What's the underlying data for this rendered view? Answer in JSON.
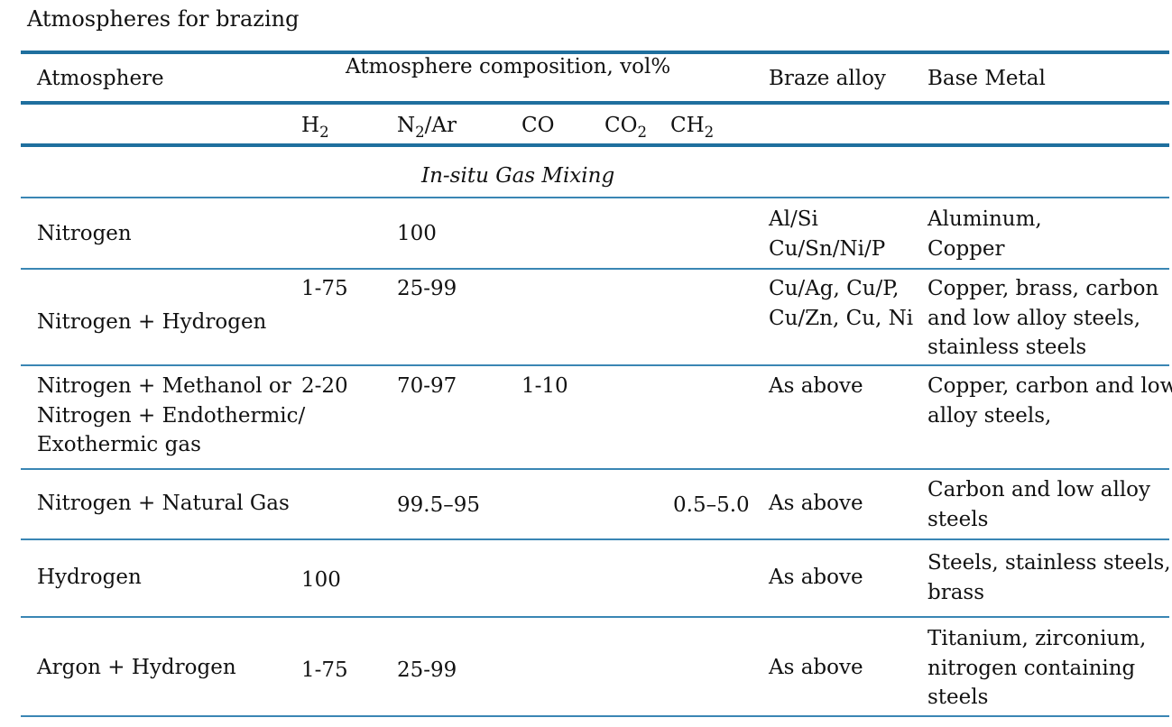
{
  "title": "Atmospheres for brazing",
  "colors": {
    "rule": "#1f6f9e"
  },
  "headers": {
    "atmosphere": "Atmosphere",
    "composition": "Atmosphere composition, vol%",
    "braze_alloy": "Braze alloy",
    "base_metal": "Base Metal"
  },
  "subheaders": {
    "h2": {
      "base": "H",
      "sub": "2"
    },
    "n2ar": {
      "base": "N",
      "sub": "2",
      "rest": "/Ar"
    },
    "co": "CO",
    "co2": {
      "base": "CO",
      "sub": "2"
    },
    "ch2": {
      "base": "CH",
      "sub": "2"
    }
  },
  "section": "In-situ Gas Mixing",
  "rows": [
    {
      "atmosphere": [
        "Nitrogen"
      ],
      "h2": "",
      "n2ar": "100",
      "co": "",
      "co2": "",
      "ch2": "",
      "braze": [
        "Al/Si",
        "Cu/Sn/Ni/P"
      ],
      "base": [
        "Aluminum,",
        "Copper"
      ]
    },
    {
      "atmosphere": [
        "Nitrogen + Hydrogen"
      ],
      "h2": "1-75",
      "n2ar": "25-99",
      "co": "",
      "co2": "",
      "ch2": "",
      "braze": [
        "Cu/Ag, Cu/P,",
        "Cu/Zn, Cu, Ni"
      ],
      "base": [
        "Copper, brass, carbon",
        "and low alloy steels,",
        "stainless steels"
      ]
    },
    {
      "atmosphere": [
        "Nitrogen + Methanol or",
        "Nitrogen + Endothermic/",
        "Exothermic gas"
      ],
      "h2": "2-20",
      "n2ar": "70-97",
      "co": "1-10",
      "co2": "",
      "ch2": "",
      "braze": [
        "As above"
      ],
      "base": [
        "Copper, carbon and low",
        "alloy steels,"
      ]
    },
    {
      "atmosphere": [
        "Nitrogen + Natural Gas"
      ],
      "h2": "",
      "n2ar": "99.5–95",
      "co": "",
      "co2": "",
      "ch2": "0.5–5.0",
      "braze": [
        "As above"
      ],
      "base": [
        "Carbon and low alloy",
        "steels"
      ]
    },
    {
      "atmosphere": [
        "Hydrogen"
      ],
      "h2": "100",
      "n2ar": "",
      "co": "",
      "co2": "",
      "ch2": "",
      "braze": [
        "As above"
      ],
      "base": [
        "Steels, stainless steels,",
        "brass"
      ]
    },
    {
      "atmosphere": [
        "Argon  + Hydrogen"
      ],
      "h2": "1-75",
      "n2ar": "25-99",
      "co": "",
      "co2": "",
      "ch2": "",
      "braze": [
        "As above"
      ],
      "base": [
        "Titanium, zirconium,",
        "nitrogen containing",
        "steels"
      ]
    }
  ]
}
